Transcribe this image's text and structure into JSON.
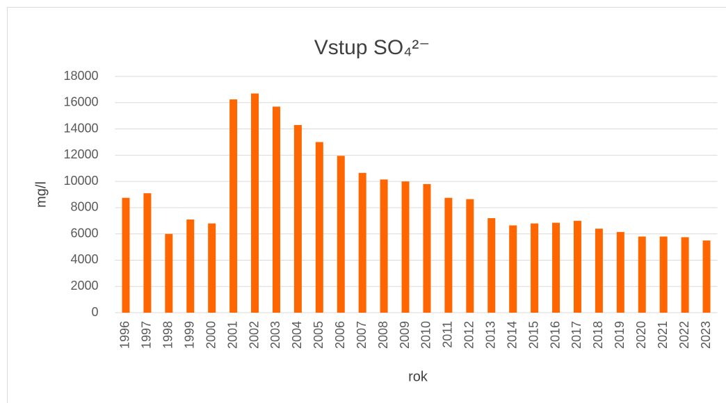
{
  "chart_data": {
    "type": "bar",
    "title": "Vstup SO₄²⁻",
    "x_label": "rok",
    "y_label": "mg/l",
    "categories": [
      "1996",
      "1997",
      "1998",
      "1999",
      "2000",
      "2001",
      "2002",
      "2003",
      "2004",
      "2005",
      "2006",
      "2007",
      "2008",
      "2009",
      "2010",
      "2011",
      "2012",
      "2013",
      "2014",
      "2015",
      "2016",
      "2017",
      "2018",
      "2019",
      "2020",
      "2021",
      "2022",
      "2023"
    ],
    "values": [
      8750,
      9100,
      6000,
      7100,
      6800,
      16250,
      16700,
      15700,
      14300,
      13000,
      11950,
      10650,
      10150,
      10000,
      9800,
      8750,
      8650,
      7200,
      6650,
      6800,
      6850,
      7000,
      6400,
      6150,
      5800,
      5800,
      5750,
      5500
    ],
    "color": "#ff6600",
    "ylim": [
      0,
      18000
    ],
    "yticks": [
      0,
      2000,
      4000,
      6000,
      8000,
      10000,
      12000,
      14000,
      16000,
      18000
    ],
    "grid": true
  }
}
